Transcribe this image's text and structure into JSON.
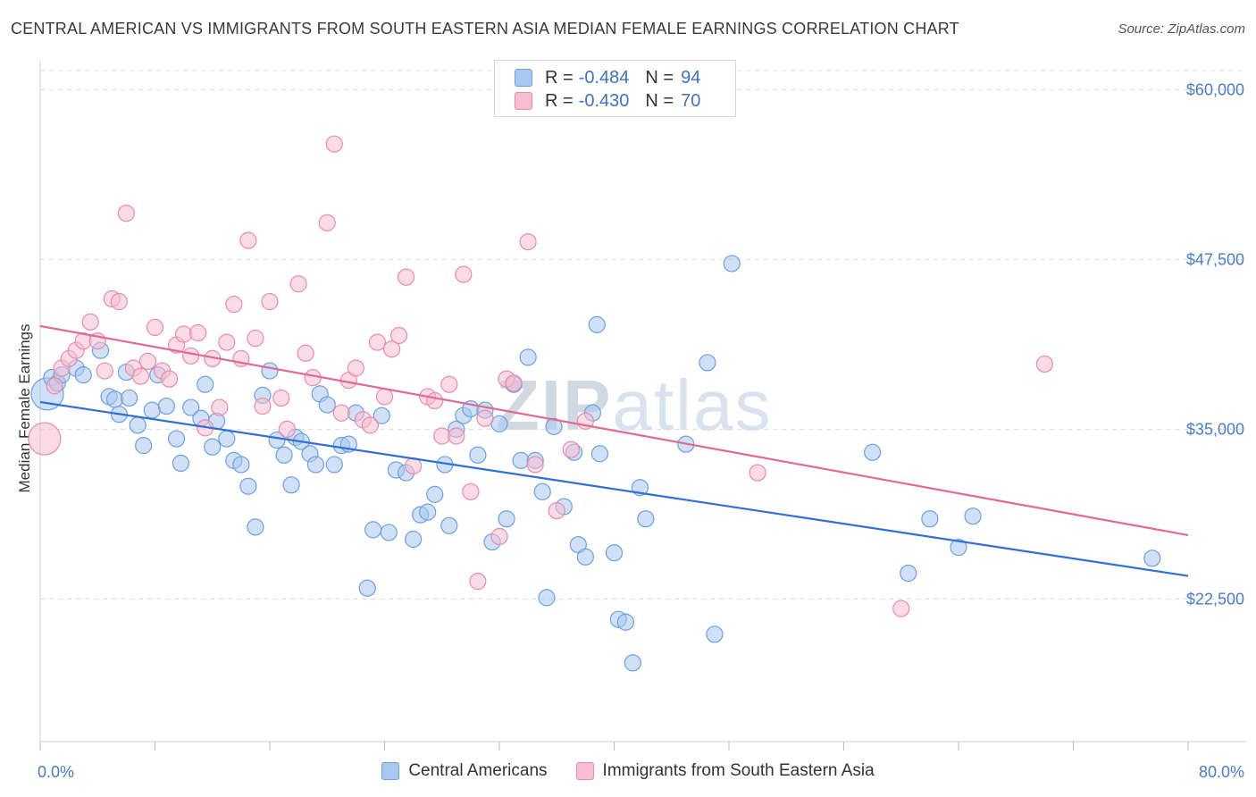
{
  "title": "CENTRAL AMERICAN VS IMMIGRANTS FROM SOUTH EASTERN ASIA MEDIAN FEMALE EARNINGS CORRELATION CHART",
  "source": "Source: ZipAtlas.com",
  "watermark": {
    "bold": "ZIP",
    "light": "atlas"
  },
  "legend": {
    "rows": [
      {
        "r_label": "R =",
        "r_value": "-0.484",
        "n_label": "N =",
        "n_value": "94",
        "color": "#a9c8f0",
        "border": "#6e9fe0"
      },
      {
        "r_label": "R =",
        "r_value": "-0.430",
        "n_label": "N =",
        "n_value": "70",
        "color": "#f7bdd0",
        "border": "#e98aab"
      }
    ]
  },
  "bottom_legend": [
    {
      "label": "Central Americans",
      "color": "#a9c8f0",
      "border": "#6e9fe0"
    },
    {
      "label": "Immigrants from South Eastern Asia",
      "color": "#f7bdd0",
      "border": "#e98aab"
    }
  ],
  "chart_data": {
    "type": "scatter",
    "title": "CENTRAL AMERICAN VS IMMIGRANTS FROM SOUTH EASTERN ASIA MEDIAN FEMALE EARNINGS CORRELATION CHART",
    "xlabel": "",
    "ylabel": "Median Female Earnings",
    "xlim": [
      0,
      80
    ],
    "ylim": [
      12000,
      62000
    ],
    "x_tick_labels": [
      "0.0%",
      "80.0%"
    ],
    "y_ticks": [
      22500,
      35000,
      47500,
      60000
    ],
    "y_tick_labels": [
      "$22,500",
      "$35,000",
      "$47,500",
      "$60,000"
    ],
    "grid": "horizontal dashed",
    "series": [
      {
        "name": "Central Americans",
        "color": "#6e9fe0",
        "fill": "#a9c8f0",
        "trend": {
          "x": [
            0,
            80
          ],
          "y": [
            37000,
            24200
          ]
        },
        "points": [
          [
            0.5,
            37600
          ],
          [
            0.8,
            38800
          ],
          [
            1.2,
            38400
          ],
          [
            1.5,
            39000
          ],
          [
            2.5,
            39500
          ],
          [
            3,
            39000
          ],
          [
            4.2,
            40800
          ],
          [
            4.8,
            37400
          ],
          [
            5.2,
            37200
          ],
          [
            5.5,
            36100
          ],
          [
            6,
            39200
          ],
          [
            6.2,
            37300
          ],
          [
            6.8,
            35300
          ],
          [
            7.2,
            33800
          ],
          [
            7.8,
            36400
          ],
          [
            8.2,
            39000
          ],
          [
            8.8,
            36700
          ],
          [
            9.5,
            34300
          ],
          [
            9.8,
            32500
          ],
          [
            10.5,
            36600
          ],
          [
            11.2,
            35800
          ],
          [
            11.5,
            38300
          ],
          [
            12,
            33700
          ],
          [
            12.3,
            35600
          ],
          [
            13,
            34300
          ],
          [
            13.5,
            32700
          ],
          [
            14,
            32400
          ],
          [
            14.5,
            30800
          ],
          [
            15,
            27800
          ],
          [
            15.5,
            37500
          ],
          [
            16,
            39300
          ],
          [
            16.5,
            34200
          ],
          [
            17,
            33100
          ],
          [
            17.5,
            30900
          ],
          [
            17.8,
            34400
          ],
          [
            18.2,
            34100
          ],
          [
            18.8,
            33200
          ],
          [
            19.2,
            32400
          ],
          [
            19.5,
            37600
          ],
          [
            20,
            36800
          ],
          [
            20.5,
            32400
          ],
          [
            21,
            33800
          ],
          [
            21.5,
            33900
          ],
          [
            22,
            36200
          ],
          [
            22.8,
            23300
          ],
          [
            23.2,
            27600
          ],
          [
            23.8,
            36000
          ],
          [
            24.3,
            27400
          ],
          [
            24.8,
            32000
          ],
          [
            25.5,
            31800
          ],
          [
            26,
            26900
          ],
          [
            26.5,
            28700
          ],
          [
            27,
            28900
          ],
          [
            27.5,
            30200
          ],
          [
            28.2,
            32400
          ],
          [
            28.5,
            27900
          ],
          [
            29,
            35000
          ],
          [
            29.5,
            36000
          ],
          [
            30,
            36500
          ],
          [
            30.5,
            33100
          ],
          [
            31,
            36400
          ],
          [
            31.5,
            26700
          ],
          [
            32,
            35400
          ],
          [
            32.5,
            28400
          ],
          [
            33,
            38300
          ],
          [
            33.5,
            32700
          ],
          [
            34,
            40300
          ],
          [
            34.5,
            32700
          ],
          [
            35,
            30400
          ],
          [
            35.3,
            22600
          ],
          [
            35.8,
            35200
          ],
          [
            36.5,
            29300
          ],
          [
            37.2,
            33300
          ],
          [
            37.5,
            26500
          ],
          [
            38,
            25600
          ],
          [
            38.5,
            36200
          ],
          [
            38.8,
            42700
          ],
          [
            39,
            33200
          ],
          [
            40,
            25900
          ],
          [
            40.3,
            21000
          ],
          [
            40.8,
            20800
          ],
          [
            41.3,
            17800
          ],
          [
            41.8,
            30700
          ],
          [
            42.2,
            28400
          ],
          [
            45,
            33900
          ],
          [
            46.5,
            39900
          ],
          [
            47,
            19900
          ],
          [
            48.2,
            47200
          ],
          [
            58,
            33300
          ],
          [
            60.5,
            24400
          ],
          [
            62,
            28400
          ],
          [
            64,
            26300
          ],
          [
            65,
            28600
          ],
          [
            77.5,
            25500
          ]
        ]
      },
      {
        "name": "Immigrants from South Eastern Asia",
        "color": "#e98aab",
        "fill": "#f7bdd0",
        "trend": {
          "x": [
            0,
            80
          ],
          "y": [
            42600,
            27200
          ]
        },
        "points": [
          [
            0.3,
            34300
          ],
          [
            1,
            38200
          ],
          [
            1.5,
            39500
          ],
          [
            2,
            40200
          ],
          [
            2.5,
            40800
          ],
          [
            3,
            41500
          ],
          [
            3.5,
            42900
          ],
          [
            4,
            41500
          ],
          [
            4.5,
            39300
          ],
          [
            5,
            44600
          ],
          [
            5.5,
            44400
          ],
          [
            6,
            50900
          ],
          [
            6.5,
            39500
          ],
          [
            7,
            38900
          ],
          [
            7.5,
            40000
          ],
          [
            8,
            42500
          ],
          [
            8.5,
            39300
          ],
          [
            9,
            38700
          ],
          [
            9.5,
            41200
          ],
          [
            10,
            42000
          ],
          [
            10.5,
            40400
          ],
          [
            11,
            42100
          ],
          [
            11.5,
            35100
          ],
          [
            12,
            40200
          ],
          [
            12.5,
            36600
          ],
          [
            13,
            41400
          ],
          [
            13.5,
            44200
          ],
          [
            14,
            40200
          ],
          [
            14.5,
            48900
          ],
          [
            15,
            41700
          ],
          [
            15.5,
            36700
          ],
          [
            16,
            44400
          ],
          [
            16.8,
            37300
          ],
          [
            17.2,
            35000
          ],
          [
            18,
            45700
          ],
          [
            18.5,
            40600
          ],
          [
            19,
            38800
          ],
          [
            20,
            50200
          ],
          [
            20.5,
            56000
          ],
          [
            21,
            36200
          ],
          [
            21.5,
            38600
          ],
          [
            22,
            39500
          ],
          [
            22.5,
            35700
          ],
          [
            23,
            35300
          ],
          [
            23.5,
            41400
          ],
          [
            24,
            37400
          ],
          [
            24.5,
            40900
          ],
          [
            25,
            41900
          ],
          [
            25.5,
            46200
          ],
          [
            26,
            32300
          ],
          [
            27,
            37400
          ],
          [
            27.5,
            37100
          ],
          [
            28,
            34500
          ],
          [
            28.5,
            38300
          ],
          [
            29,
            34500
          ],
          [
            29.5,
            46400
          ],
          [
            30,
            30400
          ],
          [
            30.5,
            23800
          ],
          [
            31,
            35800
          ],
          [
            32,
            27100
          ],
          [
            32.5,
            38700
          ],
          [
            33,
            38400
          ],
          [
            34,
            48800
          ],
          [
            34.5,
            32400
          ],
          [
            36,
            29000
          ],
          [
            37,
            33500
          ],
          [
            38,
            35600
          ],
          [
            50,
            31800
          ],
          [
            60,
            21800
          ],
          [
            70,
            39800
          ]
        ]
      }
    ]
  }
}
